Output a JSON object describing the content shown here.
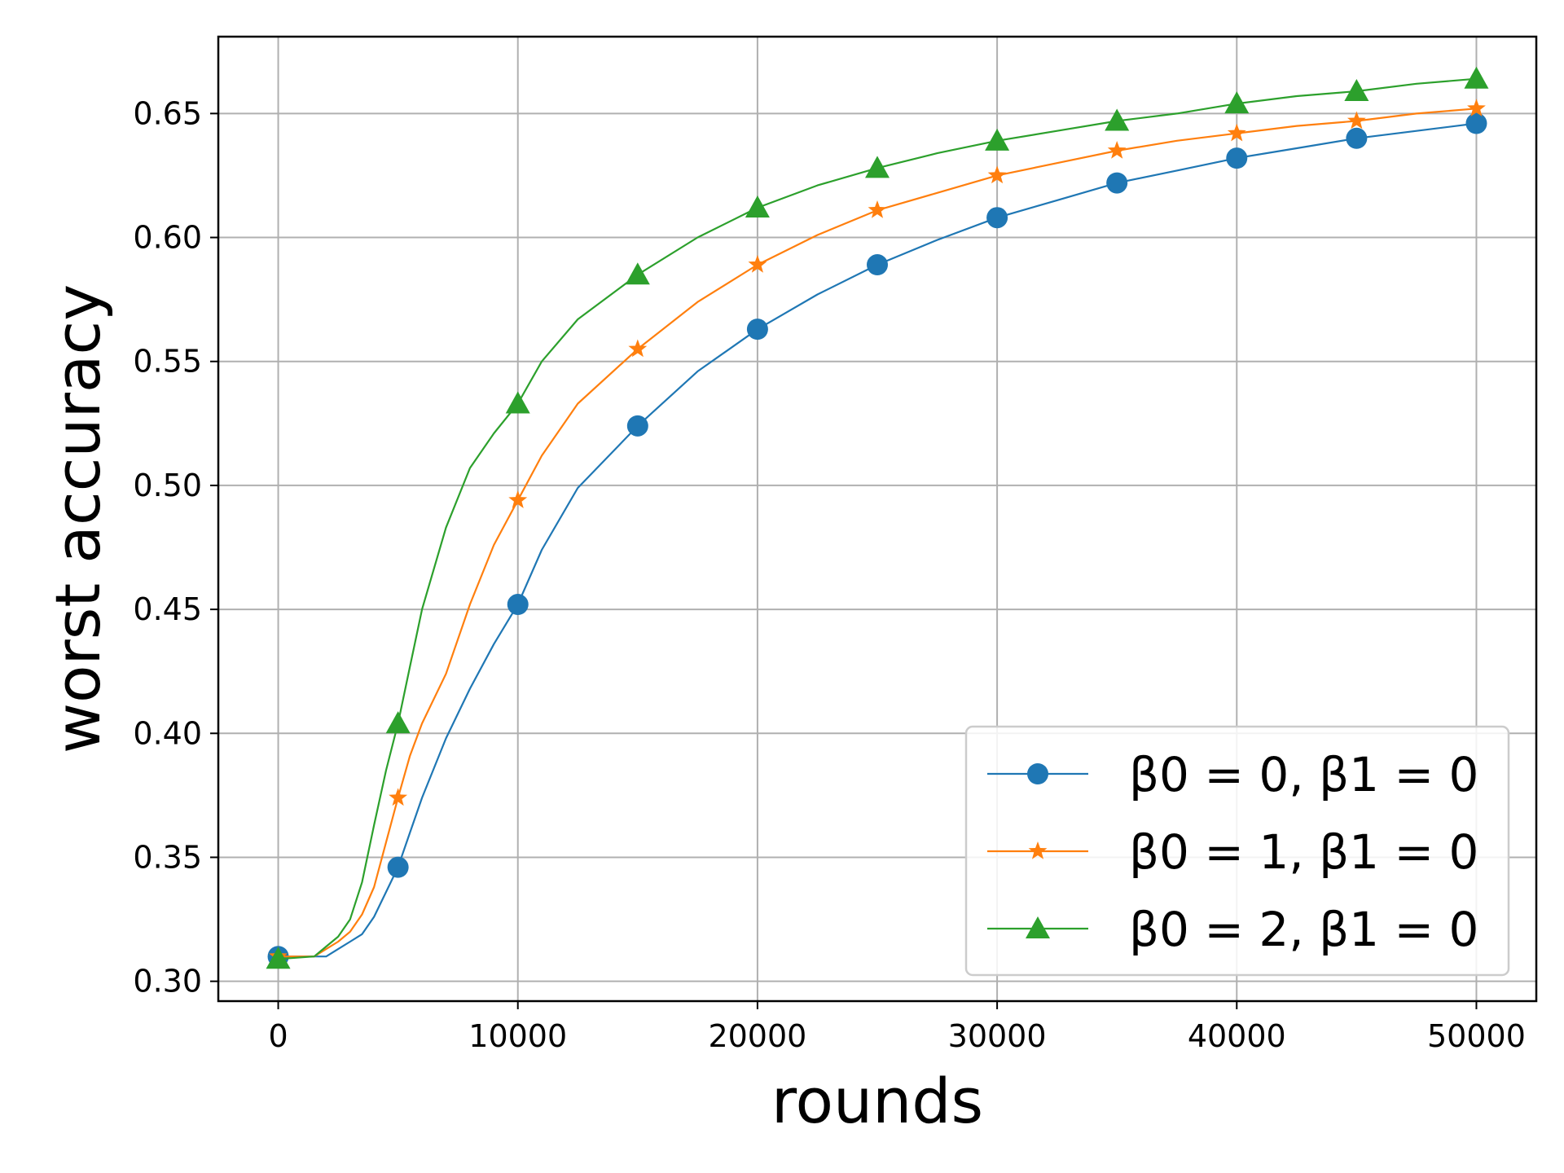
{
  "chart_data": {
    "type": "line",
    "title": "",
    "xlabel": "rounds",
    "ylabel": "worst accuracy",
    "xlim": [
      -2500,
      52500
    ],
    "ylim": [
      0.292,
      0.681
    ],
    "x_ticks": [
      0,
      10000,
      20000,
      30000,
      40000,
      50000
    ],
    "x_tick_labels": [
      "0",
      "10000",
      "20000",
      "30000",
      "40000",
      "50000"
    ],
    "y_ticks": [
      0.3,
      0.35,
      0.4,
      0.45,
      0.5,
      0.55,
      0.6,
      0.65
    ],
    "y_tick_labels": [
      "0.30",
      "0.35",
      "0.40",
      "0.45",
      "0.50",
      "0.55",
      "0.60",
      "0.65"
    ],
    "grid": true,
    "legend_position": "lower-right",
    "series": [
      {
        "name": "β0 = 0, β1 = 0",
        "color": "#1f77b4",
        "marker": "circle",
        "marker_x": [
          0,
          5000,
          10000,
          15000,
          20000,
          25000,
          30000,
          35000,
          40000,
          45000,
          50000
        ],
        "marker_y": [
          0.31,
          0.346,
          0.452,
          0.524,
          0.563,
          0.589,
          0.608,
          0.622,
          0.632,
          0.64,
          0.646
        ],
        "x": [
          0,
          2000,
          2500,
          3000,
          3500,
          4000,
          4500,
          5000,
          5500,
          6000,
          7000,
          8000,
          9000,
          10000,
          11000,
          12500,
          15000,
          17500,
          20000,
          22500,
          25000,
          27500,
          30000,
          32500,
          35000,
          37500,
          40000,
          42500,
          45000,
          47500,
          50000
        ],
        "y": [
          0.31,
          0.31,
          0.313,
          0.316,
          0.319,
          0.326,
          0.336,
          0.346,
          0.36,
          0.374,
          0.398,
          0.418,
          0.436,
          0.452,
          0.474,
          0.499,
          0.524,
          0.546,
          0.563,
          0.577,
          0.589,
          0.599,
          0.608,
          0.615,
          0.622,
          0.627,
          0.632,
          0.636,
          0.64,
          0.643,
          0.646
        ]
      },
      {
        "name": "β0 = 1, β1 = 0",
        "color": "#ff7f0e",
        "marker": "star",
        "marker_x": [
          0,
          5000,
          10000,
          15000,
          20000,
          25000,
          30000,
          35000,
          40000,
          45000,
          50000
        ],
        "marker_y": [
          0.31,
          0.374,
          0.494,
          0.555,
          0.589,
          0.611,
          0.625,
          0.635,
          0.642,
          0.647,
          0.652
        ],
        "x": [
          0,
          1500,
          2000,
          2500,
          3000,
          3500,
          4000,
          4500,
          5000,
          5500,
          6000,
          7000,
          8000,
          9000,
          10000,
          11000,
          12500,
          15000,
          17500,
          20000,
          22500,
          25000,
          27500,
          30000,
          32500,
          35000,
          37500,
          40000,
          42500,
          45000,
          47500,
          50000
        ],
        "y": [
          0.31,
          0.31,
          0.313,
          0.316,
          0.32,
          0.327,
          0.338,
          0.356,
          0.374,
          0.391,
          0.404,
          0.424,
          0.452,
          0.476,
          0.494,
          0.512,
          0.533,
          0.555,
          0.574,
          0.589,
          0.601,
          0.611,
          0.618,
          0.625,
          0.63,
          0.635,
          0.639,
          0.642,
          0.645,
          0.647,
          0.65,
          0.652
        ]
      },
      {
        "name": "β0 = 2, β1 = 0",
        "color": "#2ca02c",
        "marker": "triangle",
        "marker_x": [
          0,
          5000,
          10000,
          15000,
          20000,
          25000,
          30000,
          35000,
          40000,
          45000,
          50000
        ],
        "marker_y": [
          0.309,
          0.404,
          0.533,
          0.585,
          0.612,
          0.628,
          0.639,
          0.647,
          0.654,
          0.659,
          0.664
        ],
        "x": [
          0,
          1500,
          2000,
          2500,
          3000,
          3500,
          4000,
          4500,
          5000,
          5500,
          6000,
          7000,
          8000,
          9000,
          10000,
          11000,
          12500,
          15000,
          17500,
          20000,
          22500,
          25000,
          27500,
          30000,
          32500,
          35000,
          37500,
          40000,
          42500,
          45000,
          47500,
          50000
        ],
        "y": [
          0.309,
          0.31,
          0.314,
          0.318,
          0.325,
          0.34,
          0.363,
          0.385,
          0.404,
          0.427,
          0.45,
          0.483,
          0.507,
          0.521,
          0.533,
          0.55,
          0.567,
          0.585,
          0.6,
          0.612,
          0.621,
          0.628,
          0.634,
          0.639,
          0.643,
          0.647,
          0.65,
          0.654,
          0.657,
          0.659,
          0.662,
          0.664
        ]
      }
    ]
  }
}
